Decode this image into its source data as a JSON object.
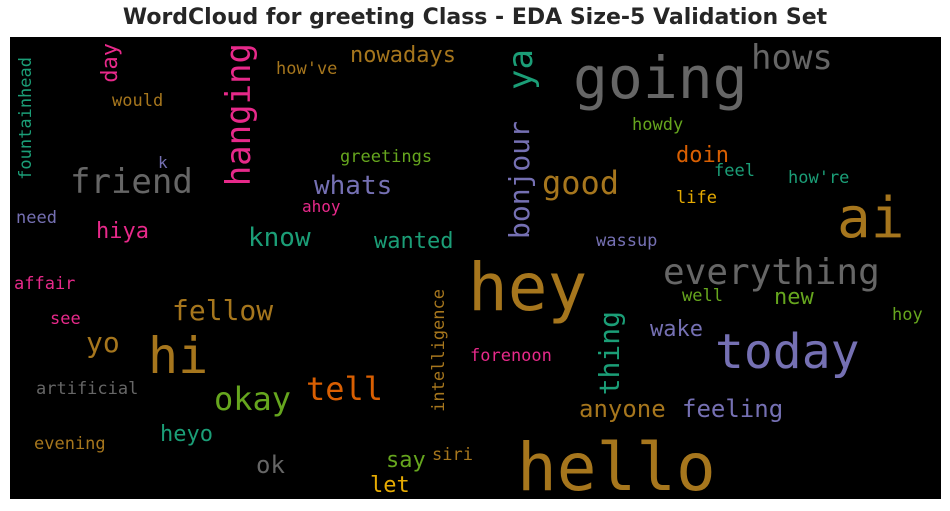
{
  "title": "WordCloud for greeting Class - EDA Size-5 Validation Set",
  "chart_data": {
    "type": "wordcloud",
    "title": "WordCloud for greeting Class - EDA Size-5 Validation Set",
    "background": "#000000",
    "words": [
      {
        "text": "hello",
        "weight": 1.0,
        "color": "#a6761d",
        "vertical": false
      },
      {
        "text": "hey",
        "weight": 1.0,
        "color": "#a6761d",
        "vertical": false
      },
      {
        "text": "going",
        "weight": 0.9,
        "color": "#666666",
        "vertical": false
      },
      {
        "text": "ai",
        "weight": 0.9,
        "color": "#a6761d",
        "vertical": false
      },
      {
        "text": "today",
        "weight": 0.8,
        "color": "#7570b3",
        "vertical": false
      },
      {
        "text": "hi",
        "weight": 0.8,
        "color": "#a6761d",
        "vertical": false
      },
      {
        "text": "everything",
        "weight": 0.6,
        "color": "#666666",
        "vertical": false
      },
      {
        "text": "friend",
        "weight": 0.55,
        "color": "#666666",
        "vertical": false
      },
      {
        "text": "hows",
        "weight": 0.55,
        "color": "#666666",
        "vertical": false
      },
      {
        "text": "ya",
        "weight": 0.55,
        "color": "#1b9e77",
        "vertical": true
      },
      {
        "text": "hanging",
        "weight": 0.55,
        "color": "#e7298a",
        "vertical": true
      },
      {
        "text": "okay",
        "weight": 0.55,
        "color": "#66a61e",
        "vertical": false
      },
      {
        "text": "tell",
        "weight": 0.55,
        "color": "#d95f02",
        "vertical": false
      },
      {
        "text": "good",
        "weight": 0.5,
        "color": "#a6761d",
        "vertical": false
      },
      {
        "text": "bonjour",
        "weight": 0.45,
        "color": "#7570b3",
        "vertical": true
      },
      {
        "text": "thing",
        "weight": 0.45,
        "color": "#1b9e77",
        "vertical": true
      },
      {
        "text": "fellow",
        "weight": 0.42,
        "color": "#a6761d",
        "vertical": false
      },
      {
        "text": "yo",
        "weight": 0.42,
        "color": "#a6761d",
        "vertical": false
      },
      {
        "text": "whats",
        "weight": 0.4,
        "color": "#7570b3",
        "vertical": false
      },
      {
        "text": "know",
        "weight": 0.4,
        "color": "#1b9e77",
        "vertical": false
      },
      {
        "text": "anyone",
        "weight": 0.38,
        "color": "#a6761d",
        "vertical": false
      },
      {
        "text": "feeling",
        "weight": 0.36,
        "color": "#7570b3",
        "vertical": false
      },
      {
        "text": "ok",
        "weight": 0.36,
        "color": "#666666",
        "vertical": false
      },
      {
        "text": "nowadays",
        "weight": 0.33,
        "color": "#a6761d",
        "vertical": false
      },
      {
        "text": "new",
        "weight": 0.33,
        "color": "#66a61e",
        "vertical": false
      },
      {
        "text": "wake",
        "weight": 0.33,
        "color": "#7570b3",
        "vertical": false
      },
      {
        "text": "day",
        "weight": 0.3,
        "color": "#e7298a",
        "vertical": true
      },
      {
        "text": "doin",
        "weight": 0.3,
        "color": "#d95f02",
        "vertical": false
      },
      {
        "text": "wanted",
        "weight": 0.3,
        "color": "#1b9e77",
        "vertical": false
      },
      {
        "text": "hiya",
        "weight": 0.3,
        "color": "#e7298a",
        "vertical": false
      },
      {
        "text": "heyo",
        "weight": 0.3,
        "color": "#1b9e77",
        "vertical": false
      },
      {
        "text": "say",
        "weight": 0.3,
        "color": "#66a61e",
        "vertical": false
      },
      {
        "text": "let",
        "weight": 0.3,
        "color": "#e6ab02",
        "vertical": false
      },
      {
        "text": "intelligence",
        "weight": 0.25,
        "color": "#a6761d",
        "vertical": true
      },
      {
        "text": "fountainhead",
        "weight": 0.25,
        "color": "#1b9e77",
        "vertical": true
      },
      {
        "text": "forenoon",
        "weight": 0.25,
        "color": "#e7298a",
        "vertical": false
      },
      {
        "text": "artificial",
        "weight": 0.25,
        "color": "#666666",
        "vertical": false
      },
      {
        "text": "evening",
        "weight": 0.25,
        "color": "#a6761d",
        "vertical": false
      },
      {
        "text": "how've",
        "weight": 0.25,
        "color": "#a6761d",
        "vertical": false
      },
      {
        "text": "would",
        "weight": 0.25,
        "color": "#a6761d",
        "vertical": false
      },
      {
        "text": "howdy",
        "weight": 0.25,
        "color": "#66a61e",
        "vertical": false
      },
      {
        "text": "greetings",
        "weight": 0.25,
        "color": "#66a61e",
        "vertical": false
      },
      {
        "text": "feel",
        "weight": 0.25,
        "color": "#1b9e77",
        "vertical": false
      },
      {
        "text": "how're",
        "weight": 0.25,
        "color": "#1b9e77",
        "vertical": false
      },
      {
        "text": "life",
        "weight": 0.25,
        "color": "#e6ab02",
        "vertical": false
      },
      {
        "text": "wassup",
        "weight": 0.25,
        "color": "#7570b3",
        "vertical": false
      },
      {
        "text": "well",
        "weight": 0.25,
        "color": "#66a61e",
        "vertical": false
      },
      {
        "text": "hoy",
        "weight": 0.25,
        "color": "#66a61e",
        "vertical": false
      },
      {
        "text": "affair",
        "weight": 0.25,
        "color": "#e7298a",
        "vertical": false
      },
      {
        "text": "need",
        "weight": 0.25,
        "color": "#7570b3",
        "vertical": false
      },
      {
        "text": "see",
        "weight": 0.25,
        "color": "#e7298a",
        "vertical": false
      },
      {
        "text": "siri",
        "weight": 0.25,
        "color": "#a6761d",
        "vertical": false
      },
      {
        "text": "ahoy",
        "weight": 0.22,
        "color": "#e7298a",
        "vertical": false
      },
      {
        "text": "k",
        "weight": 0.22,
        "color": "#7570b3",
        "vertical": false
      }
    ]
  }
}
